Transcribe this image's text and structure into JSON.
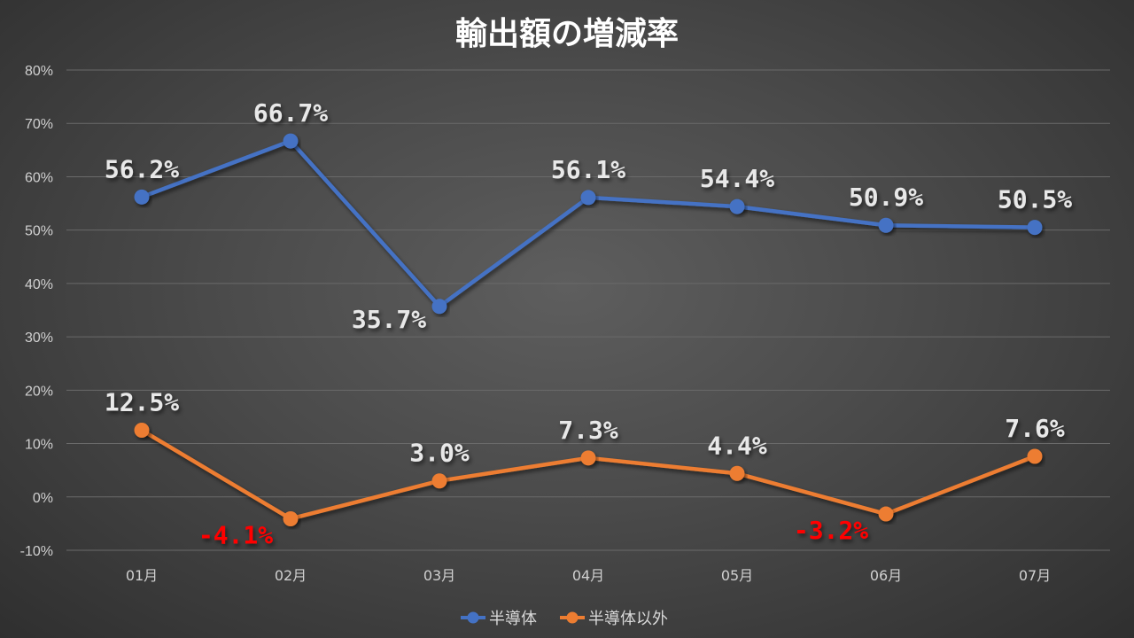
{
  "chart_data": {
    "type": "line",
    "title": "輸出額の増減率",
    "categories": [
      "01月",
      "02月",
      "03月",
      "04月",
      "05月",
      "06月",
      "07月"
    ],
    "ylim": [
      -10,
      80
    ],
    "yticks": [
      "-10%",
      "0%",
      "10%",
      "20%",
      "30%",
      "40%",
      "50%",
      "60%",
      "70%",
      "80%"
    ],
    "grid": true,
    "legend_position": "bottom",
    "series": [
      {
        "name": "半導体",
        "color": "#4472C4",
        "values": [
          56.2,
          66.7,
          35.7,
          56.1,
          54.4,
          50.9,
          50.5
        ],
        "labels": [
          "56.2%",
          "66.7%",
          "35.7%",
          "56.1%",
          "54.4%",
          "50.9%",
          "50.5%"
        ]
      },
      {
        "name": "半導体以外",
        "color": "#ED7D31",
        "values": [
          12.5,
          -4.1,
          3.0,
          7.3,
          4.4,
          -3.2,
          7.6
        ],
        "labels": [
          "12.5%",
          "-4.1%",
          "3.0%",
          "7.3%",
          "4.4%",
          "-3.2%",
          "7.6%"
        ]
      }
    ],
    "label_color": "#e8e8e8",
    "negative_label_color": "#ff0000"
  }
}
